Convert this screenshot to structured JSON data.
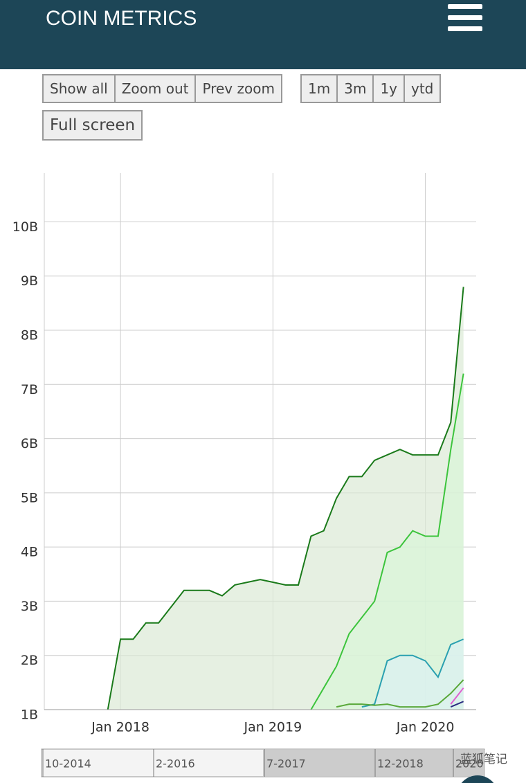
{
  "header": {
    "title": "COIN METRICS"
  },
  "buttons": {
    "zoom": [
      "Show all",
      "Zoom out",
      "Prev zoom"
    ],
    "ranges": [
      "1m",
      "3m",
      "1y",
      "ytd"
    ],
    "fullscreen": "Full screen"
  },
  "chart_data": {
    "type": "line",
    "x": [
      "2017-12",
      "2018-01",
      "2018-02",
      "2018-03",
      "2018-04",
      "2018-05",
      "2018-06",
      "2018-07",
      "2018-08",
      "2018-09",
      "2018-10",
      "2018-11",
      "2018-12",
      "2019-01",
      "2019-02",
      "2019-03",
      "2019-04",
      "2019-05",
      "2019-06",
      "2019-07",
      "2019-08",
      "2019-09",
      "2019-10",
      "2019-11",
      "2019-12",
      "2020-01",
      "2020-02",
      "2020-03",
      "2020-04"
    ],
    "series": [
      {
        "color": "#1a7a1a",
        "fill": "#dbe9d6",
        "values": [
          1000000000.0,
          2300000000.0,
          2300000000.0,
          2600000000.0,
          2600000000.0,
          2900000000.0,
          3200000000.0,
          3200000000.0,
          3200000000.0,
          3100000000.0,
          3300000000.0,
          3350000000.0,
          3400000000.0,
          3350000000.0,
          3300000000.0,
          3300000000.0,
          4200000000.0,
          4300000000.0,
          4900000000.0,
          5300000000.0,
          5300000000.0,
          5600000000.0,
          5700000000.0,
          5800000000.0,
          5700000000.0,
          5700000000.0,
          5700000000.0,
          6300000000.0,
          8800000000.0
        ]
      },
      {
        "color": "#3cc43c",
        "fill": "#d9f5d9",
        "values": [
          null,
          null,
          null,
          null,
          null,
          null,
          null,
          null,
          null,
          null,
          null,
          null,
          null,
          null,
          null,
          null,
          1000000000.0,
          1400000000.0,
          1800000000.0,
          2400000000.0,
          2700000000.0,
          3000000000.0,
          3900000000.0,
          4000000000.0,
          4300000000.0,
          4200000000.0,
          4200000000.0,
          5800000000.0,
          7200000000.0
        ]
      },
      {
        "color": "#2aa0b0",
        "fill": "#dcf1f3",
        "values": [
          null,
          null,
          null,
          null,
          null,
          null,
          null,
          null,
          null,
          null,
          null,
          null,
          null,
          null,
          null,
          null,
          null,
          null,
          null,
          null,
          1050000000.0,
          1100000000.0,
          1900000000.0,
          2000000000.0,
          2000000000.0,
          1900000000.0,
          1600000000.0,
          2200000000.0,
          2300000000.0
        ]
      },
      {
        "color": "#5aa83a",
        "values": [
          null,
          null,
          null,
          null,
          null,
          null,
          null,
          null,
          null,
          null,
          null,
          null,
          null,
          null,
          null,
          null,
          null,
          null,
          1050000000.0,
          1100000000.0,
          1100000000.0,
          1080000000.0,
          1100000000.0,
          1050000000.0,
          1050000000.0,
          1050000000.0,
          1100000000.0,
          1300000000.0,
          1550000000.0
        ]
      },
      {
        "color": "#e060d0",
        "values": [
          null,
          null,
          null,
          null,
          null,
          null,
          null,
          null,
          null,
          null,
          null,
          null,
          null,
          null,
          null,
          null,
          null,
          null,
          null,
          null,
          null,
          null,
          null,
          null,
          null,
          null,
          null,
          1100000000.0,
          1400000000.0
        ]
      },
      {
        "color": "#2a2a80",
        "values": [
          null,
          null,
          null,
          null,
          null,
          null,
          null,
          null,
          null,
          null,
          null,
          null,
          null,
          null,
          null,
          null,
          null,
          null,
          null,
          null,
          null,
          null,
          null,
          null,
          null,
          null,
          null,
          1050000000.0,
          1150000000.0
        ]
      }
    ],
    "xlim": [
      "2017-07",
      "2020-05"
    ],
    "xticks": [
      {
        "value": "2018-01",
        "label": "Jan 2018"
      },
      {
        "value": "2019-01",
        "label": "Jan 2019"
      },
      {
        "value": "2020-01",
        "label": "Jan 2020"
      }
    ],
    "ylim": [
      1000000000,
      10900000000
    ],
    "yticks": [
      {
        "value": 1000000000,
        "label": "1B"
      },
      {
        "value": 2000000000,
        "label": "2B"
      },
      {
        "value": 3000000000,
        "label": "3B"
      },
      {
        "value": 4000000000,
        "label": "4B"
      },
      {
        "value": 5000000000,
        "label": "5B"
      },
      {
        "value": 6000000000,
        "label": "6B"
      },
      {
        "value": 7000000000,
        "label": "7B"
      },
      {
        "value": 8000000000,
        "label": "8B"
      },
      {
        "value": 9000000000,
        "label": "9B"
      },
      {
        "value": 10000000000,
        "label": "10B"
      }
    ],
    "grid": true
  },
  "navigator": {
    "labels": [
      "10-2014",
      "2-2016",
      "7-2017",
      "12-2018",
      "2020"
    ]
  },
  "watermark": "蓝狐笔记"
}
